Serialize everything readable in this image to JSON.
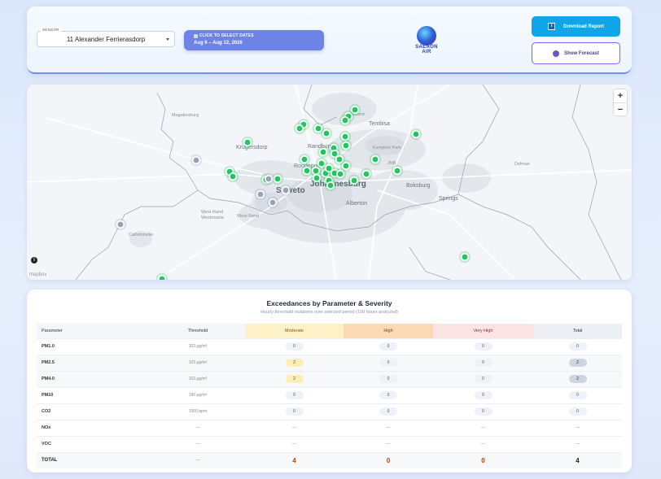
{
  "header": {
    "sensor_label": "SENSOR",
    "sensor_value": "11 Alexander Ferrierasdorp",
    "date_caption": "CLICK TO SELECT DATES",
    "date_range": "Aug 6 – Aug 12, 2026",
    "logo_text_1": "SAEAON",
    "logo_text_2": "AIR",
    "download_label": "Download Report",
    "forecast_label": "Show Forecast",
    "accent": "#0ea5e9"
  },
  "map": {
    "places": {
      "magaliesburg": "Magaliesburg",
      "tembisa": "Tembisa",
      "krugersdorp": "Krugersdorp",
      "randburg": "Randburg",
      "kempton_park": "Kempton Park",
      "roodepoort": "Roodepoort",
      "jnb": "JNB",
      "delmas": "Delmas",
      "soweto": "Soweto",
      "johannesburg": "Johannesburg",
      "boksburg": "Boksburg",
      "springs": "Springs",
      "alberton": "Alberton",
      "carletonville": "Carletonville",
      "west_rand_1": "West Rand",
      "west_rand_2": "West Rand",
      "midrand": "Midrand",
      "ward": "Westonaria"
    },
    "zoom_in": "+",
    "zoom_out": "−",
    "attribution": "mapbox",
    "marker_colors": {
      "active": "#22c55e",
      "inactive": "#94a3b8"
    }
  },
  "table": {
    "title": "Exceedances by Parameter & Severity",
    "subtitle": "Hourly threshold violations over selected period (150 hours analyzed)",
    "headers": [
      "Parameter",
      "Threshold",
      "Moderate",
      "High",
      "Very High",
      "Total"
    ],
    "rows": [
      {
        "param": "PM1.0",
        "threshold": "103 µg/m³",
        "moderate": "0",
        "high": "0",
        "very_high": "0",
        "total": "0"
      },
      {
        "param": "PM2.5",
        "threshold": "103 µg/m³",
        "moderate": "2",
        "high": "0",
        "very_high": "0",
        "total": "2"
      },
      {
        "param": "PM4.0",
        "threshold": "103 µg/m³",
        "moderate": "2",
        "high": "0",
        "very_high": "0",
        "total": "2"
      },
      {
        "param": "PM10",
        "threshold": "190 µg/m³",
        "moderate": "0",
        "high": "0",
        "very_high": "0",
        "total": "0"
      },
      {
        "param": "CO2",
        "threshold": "1000 ppm",
        "moderate": "0",
        "high": "0",
        "very_high": "0",
        "total": "0"
      },
      {
        "param": "NOx",
        "threshold": "—",
        "moderate": "—",
        "high": "—",
        "very_high": "—",
        "total": "—"
      },
      {
        "param": "VOC",
        "threshold": "—",
        "moderate": "—",
        "high": "—",
        "very_high": "—",
        "total": "—"
      }
    ],
    "total": {
      "label": "TOTAL",
      "threshold": "—",
      "moderate": "4",
      "high": "0",
      "very_high": "0",
      "total": "4"
    }
  }
}
